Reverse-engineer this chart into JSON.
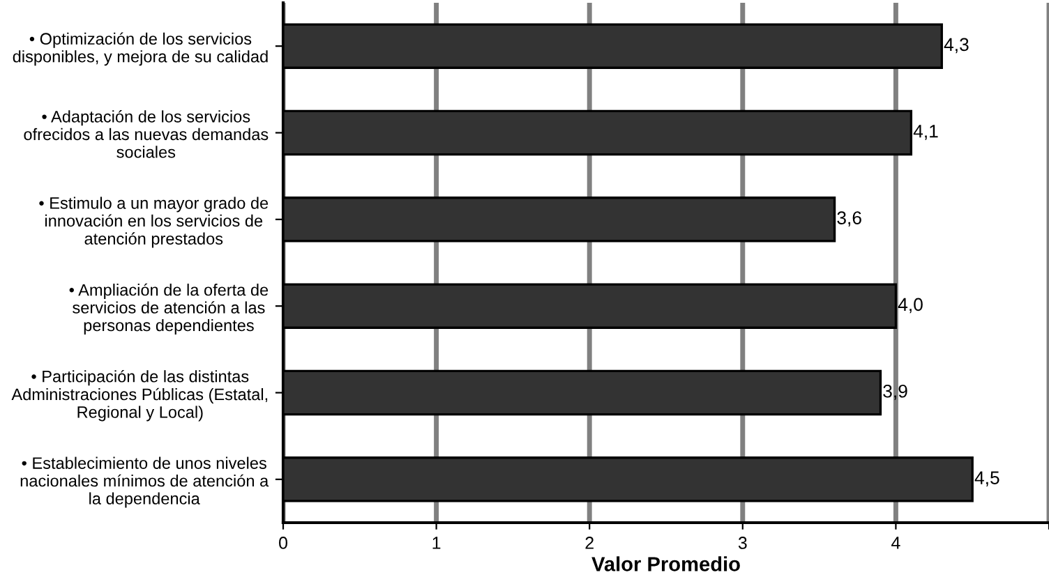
{
  "chart_data": {
    "type": "bar",
    "orientation": "horizontal",
    "xlabel": "Valor Promedio",
    "categories": [
      "• Optimización de los servicios\ndisponibles, y mejora de su calidad",
      "• Adaptación de los servicios\nofrecidos a las nuevas demandas\nsociales",
      "• Estimulo a un mayor grado de\ninnovación en los servicios de\natención prestados",
      "• Ampliación de la oferta de\nservicios de atención a las\npersonas dependientes",
      "• Participación de las distintas\nAdministraciones Públicas (Estatal,\nRegional y Local)",
      "• Establecimiento de unos niveles\nnacionales mínimos de atención a\nla dependencia"
    ],
    "values": [
      4.3,
      4.1,
      3.6,
      4.0,
      3.9,
      4.5
    ],
    "value_labels": [
      "4,3",
      "4,1",
      "3,6",
      "4,0",
      "3,9",
      "4,5"
    ],
    "color": "#333333",
    "xlim": [
      0,
      5
    ],
    "xticks": [
      0,
      1,
      2,
      3,
      4,
      {
        "value": 5,
        "label": null
      }
    ],
    "grid": "x",
    "legend": false
  }
}
